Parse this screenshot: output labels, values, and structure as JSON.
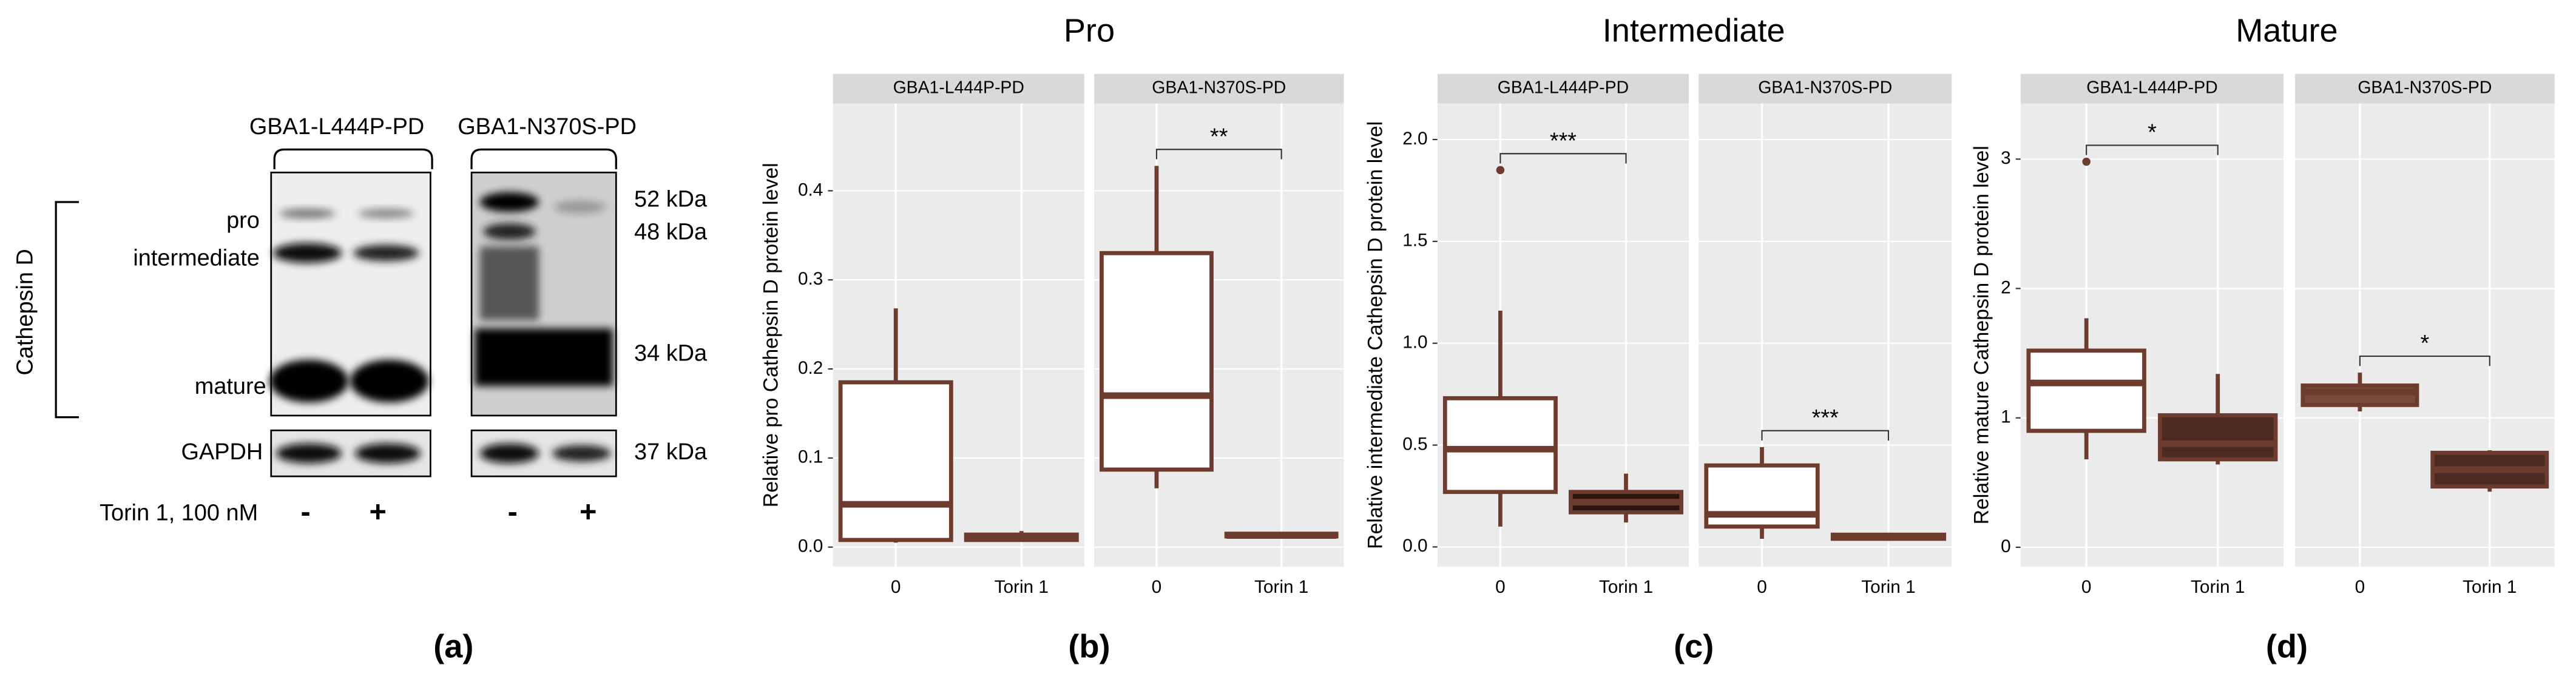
{
  "blot": {
    "groups": [
      "GBA1-L444P-PD",
      "GBA1-N370S-PD"
    ],
    "bands": [
      "pro",
      "intermediate",
      "mature"
    ],
    "protein": "Cathepsin D",
    "control": "GAPDH",
    "sizes": [
      "52 kDa",
      "48 kDa",
      "34 kDa",
      "37 kDa"
    ],
    "treatment": "Torin 1, 100 nM",
    "lanes": [
      "-",
      "+",
      "-",
      "+"
    ]
  },
  "panel_labels": [
    "(a)",
    "(b)",
    "(c)",
    "(d)"
  ],
  "chart_data": [
    {
      "type": "box",
      "title": "Pro",
      "y_label": "Relative pro Cathepsin D protein level",
      "color": "#6e3b2f",
      "grid": true,
      "categories": [
        "0",
        "Torin 1"
      ],
      "ylim": [
        -0.022,
        0.498
      ],
      "yticks": [
        {
          "value": 0,
          "label": "0.0"
        },
        0.1,
        0.2,
        0.3,
        0.4
      ],
      "facets": [
        {
          "name": "GBA1-L444P-PD",
          "boxes": [
            {
              "min": 0.005,
              "q1": 0.008,
              "median": 0.048,
              "q3": 0.185,
              "max": 0.268,
              "outliers": [],
              "fill": "#ffffff"
            },
            {
              "min": 0.006,
              "q1": 0.008,
              "median": 0.011,
              "q3": 0.014,
              "max": 0.018,
              "outliers": [],
              "fill": "#2a1510"
            }
          ]
        },
        {
          "name": "GBA1-N370S-PD",
          "significance": "**",
          "boxes": [
            {
              "min": 0.066,
              "q1": 0.087,
              "median": 0.17,
              "q3": 0.33,
              "max": 0.428,
              "outliers": [],
              "fill": "#ffffff"
            },
            {
              "min": 0.01,
              "q1": 0.012,
              "median": 0.013,
              "q3": 0.015,
              "max": 0.016,
              "outliers": [],
              "fill": "#2a1510"
            }
          ]
        }
      ]
    },
    {
      "type": "box",
      "title": "Intermediate",
      "y_label": "Relative intermediate Cathepsin D protein level",
      "color": "#6e3b2f",
      "grid": true,
      "categories": [
        "0",
        "Torin 1"
      ],
      "ylim": [
        -0.097,
        2.177
      ],
      "yticks": [
        {
          "value": 0,
          "label": "0.0"
        },
        0.5,
        {
          "value": 1,
          "label": "1.0"
        },
        1.5,
        {
          "value": 2,
          "label": "2.0"
        }
      ],
      "facets": [
        {
          "name": "GBA1-L444P-PD",
          "significance": "***",
          "boxes": [
            {
              "min": 0.1,
              "q1": 0.27,
              "median": 0.48,
              "q3": 0.73,
              "max": 1.16,
              "outliers": [
                1.85
              ],
              "fill": "#ffffff"
            },
            {
              "min": 0.12,
              "q1": 0.17,
              "median": 0.22,
              "q3": 0.27,
              "max": 0.36,
              "outliers": [],
              "fill": "#2a1510"
            }
          ]
        },
        {
          "name": "GBA1-N370S-PD",
          "significance": "***",
          "boxes": [
            {
              "min": 0.04,
              "q1": 0.1,
              "median": 0.16,
              "q3": 0.4,
              "max": 0.49,
              "outliers": [],
              "fill": "#ffffff"
            },
            {
              "min": 0.03,
              "q1": 0.04,
              "median": 0.05,
              "q3": 0.06,
              "max": 0.07,
              "outliers": [],
              "fill": "#2a1510"
            }
          ]
        }
      ]
    },
    {
      "type": "box",
      "title": "Mature",
      "y_label": "Relative mature Cathepsin D protein level",
      "color": "#6e3b2f",
      "grid": true,
      "categories": [
        "0",
        "Torin 1"
      ],
      "ylim": [
        -0.15,
        3.43
      ],
      "yticks": [
        0,
        1,
        2,
        3
      ],
      "facets": [
        {
          "name": "GBA1-L444P-PD",
          "significance": "*",
          "boxes": [
            {
              "min": 0.68,
              "q1": 0.9,
              "median": 1.27,
              "q3": 1.52,
              "max": 1.77,
              "outliers": [
                2.98
              ],
              "fill": "#ffffff"
            },
            {
              "min": 0.64,
              "q1": 0.68,
              "median": 0.8,
              "q3": 1.02,
              "max": 1.34,
              "outliers": [],
              "fill": "#4a2a22"
            }
          ]
        },
        {
          "name": "GBA1-N370S-PD",
          "significance": "*",
          "boxes": [
            {
              "min": 1.05,
              "q1": 1.1,
              "median": 1.2,
              "q3": 1.25,
              "max": 1.35,
              "outliers": [],
              "fill": "#7a4a3e"
            },
            {
              "min": 0.43,
              "q1": 0.47,
              "median": 0.6,
              "q3": 0.73,
              "max": 0.75,
              "outliers": [],
              "fill": "#4a2a22"
            }
          ]
        }
      ]
    }
  ]
}
